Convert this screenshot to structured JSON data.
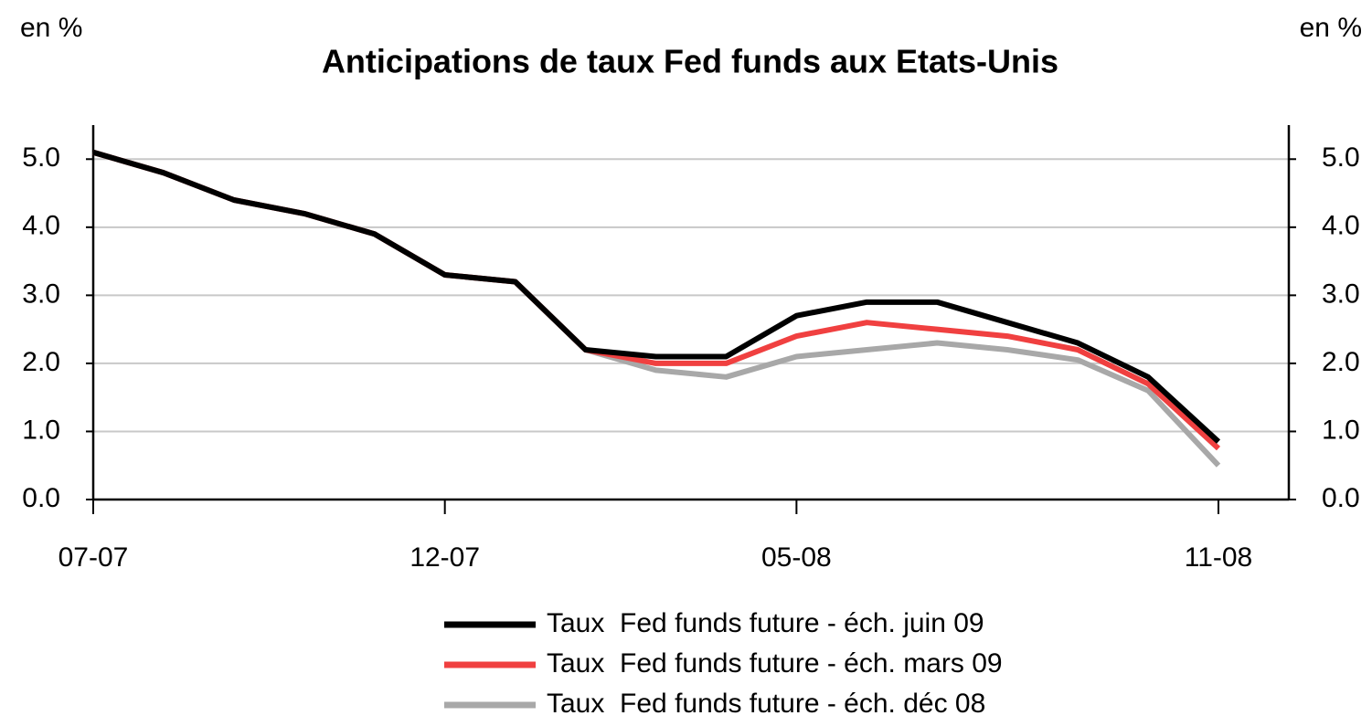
{
  "chart_data": {
    "type": "line",
    "title": "Anticipations de taux Fed funds aux Etats-Unis",
    "y_label": "en %",
    "y2_label": "en %",
    "x": [
      "07-07",
      "08-07",
      "09-07",
      "10-07",
      "11-07",
      "12-07",
      "01-08",
      "02-08",
      "03-08",
      "04-08",
      "05-08",
      "06-08",
      "07-08",
      "08-08",
      "09-08",
      "10-08",
      "11-08"
    ],
    "xticks": [
      "07-07",
      "12-07",
      "05-08",
      "11-08"
    ],
    "series": [
      {
        "name": "Taux  Fed funds future - éch. juin 09",
        "color": "#000000",
        "values": [
          5.1,
          4.8,
          4.4,
          4.2,
          3.9,
          3.3,
          3.2,
          2.2,
          2.1,
          2.1,
          2.7,
          2.9,
          2.9,
          2.6,
          2.3,
          1.8,
          0.85
        ]
      },
      {
        "name": "Taux  Fed funds future - éch. mars 09",
        "color": "#f04040",
        "values": [
          5.1,
          4.8,
          4.4,
          4.2,
          3.9,
          3.3,
          3.2,
          2.2,
          2.0,
          2.0,
          2.4,
          2.6,
          2.5,
          2.4,
          2.2,
          1.7,
          0.75
        ]
      },
      {
        "name": "Taux  Fed funds future - éch. déc 08",
        "color": "#a8a8a8",
        "values": [
          5.1,
          4.8,
          4.4,
          4.2,
          3.9,
          3.3,
          3.2,
          2.2,
          1.9,
          1.8,
          2.1,
          2.2,
          2.3,
          2.2,
          2.05,
          1.6,
          0.5
        ]
      }
    ],
    "ylim": [
      0,
      5.5
    ],
    "yticks": [
      {
        "value": 0,
        "label": "0.0"
      },
      {
        "value": 1,
        "label": "1.0"
      },
      {
        "value": 2,
        "label": "2.0"
      },
      {
        "value": 3,
        "label": "3.0"
      },
      {
        "value": 4,
        "label": "4.0"
      },
      {
        "value": 5,
        "label": "5.0"
      }
    ],
    "y2lim": [
      0,
      5.5
    ],
    "y2ticks": [
      {
        "value": 0,
        "label": "0.0"
      },
      {
        "value": 1,
        "label": "1.0"
      },
      {
        "value": 2,
        "label": "2.0"
      },
      {
        "value": 3,
        "label": "3.0"
      },
      {
        "value": 4,
        "label": "4.0"
      },
      {
        "value": 5,
        "label": "5.0"
      }
    ],
    "grid": true,
    "legend": "bottom"
  }
}
